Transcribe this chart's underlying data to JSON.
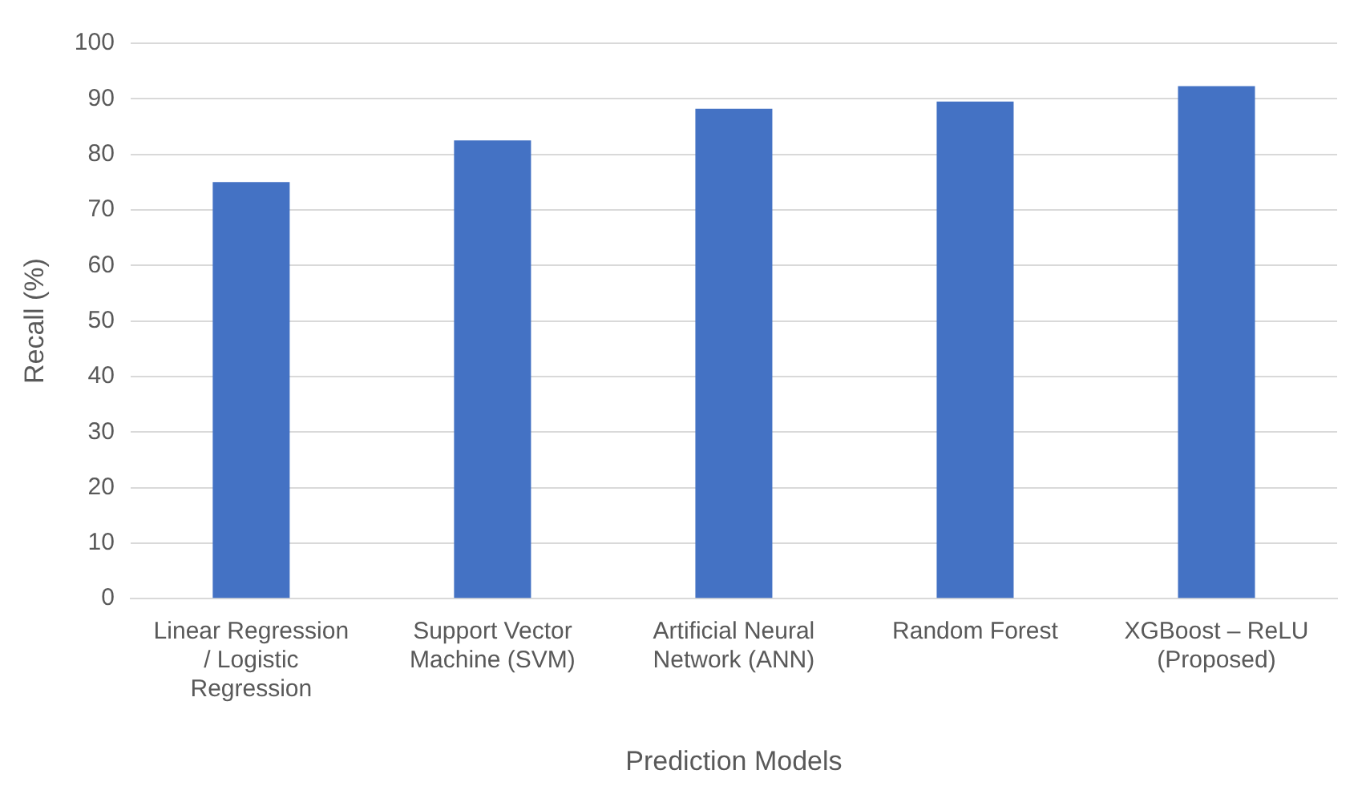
{
  "chart_data": {
    "type": "bar",
    "xlabel": "Prediction Models",
    "ylabel": "Recall (%)",
    "categories": [
      "Linear Regression / Logistic Regression",
      "Support Vector Machine (SVM)",
      "Artificial Neural Network (ANN)",
      "Random Forest",
      "XGBoost – ReLU (Proposed)"
    ],
    "values": [
      75,
      82.5,
      88.2,
      89.5,
      92.3
    ],
    "color": "#4472c4",
    "ylim": [
      0,
      100
    ],
    "yticks": [
      0,
      10,
      20,
      30,
      40,
      50,
      60,
      70,
      80,
      90,
      100
    ],
    "grid": "y",
    "legend": false
  }
}
